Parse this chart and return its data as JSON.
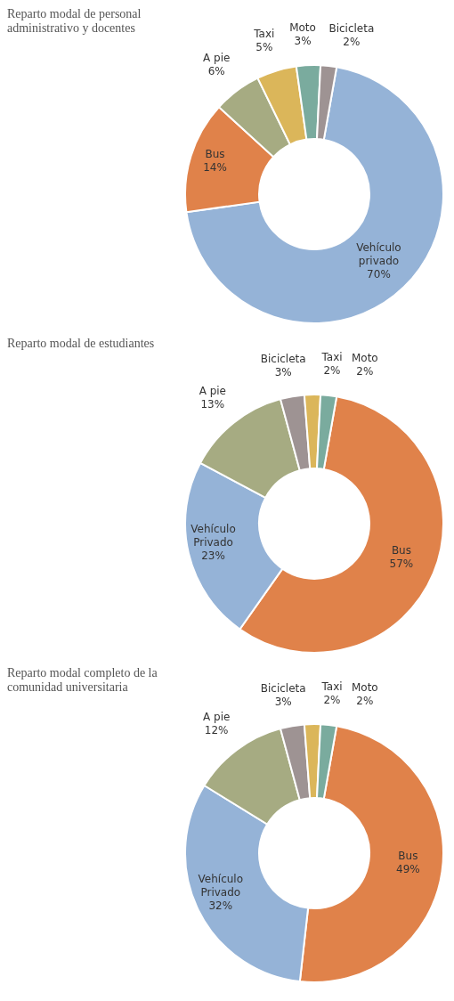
{
  "chart_data": [
    {
      "type": "donut",
      "title": "Reparto modal de personal administrativo y docentes",
      "categories": [
        "Vehículo privado",
        "Bus",
        "A pie",
        "Taxi",
        "Moto",
        "Bicicleta"
      ],
      "values": [
        70,
        14,
        6,
        5,
        3,
        2
      ],
      "value_labels": [
        "70%",
        "14%",
        "6%",
        "5%",
        "3%",
        "2%"
      ],
      "colors": [
        "#95b3d7",
        "#e0824a",
        "#a6ab82",
        "#dbb65a",
        "#7aab9e",
        "#9e9393"
      ],
      "legend": false
    },
    {
      "type": "donut",
      "title": "Reparto modal de estudiantes",
      "categories": [
        "Bus",
        "Vehículo Privado",
        "A pie",
        "Bicicleta",
        "Taxi",
        "Moto"
      ],
      "values": [
        57,
        23,
        13,
        3,
        2,
        2
      ],
      "value_labels": [
        "57%",
        "23%",
        "13%",
        "3%",
        "2%",
        "2%"
      ],
      "colors": [
        "#e0824a",
        "#95b3d7",
        "#a6ab82",
        "#9e9393",
        "#dbb65a",
        "#7aab9e"
      ],
      "legend": false
    },
    {
      "type": "donut",
      "title": "Reparto modal completo de la comunidad universitaria",
      "categories": [
        "Bus",
        "Vehículo Privado",
        "A pie",
        "Bicicleta",
        "Taxi",
        "Moto"
      ],
      "values": [
        49,
        32,
        12,
        3,
        2,
        2
      ],
      "value_labels": [
        "49%",
        "32%",
        "12%",
        "3%",
        "2%",
        "2%"
      ],
      "colors": [
        "#e0824a",
        "#95b3d7",
        "#a6ab82",
        "#9e9393",
        "#dbb65a",
        "#7aab9e"
      ],
      "legend": false
    }
  ]
}
